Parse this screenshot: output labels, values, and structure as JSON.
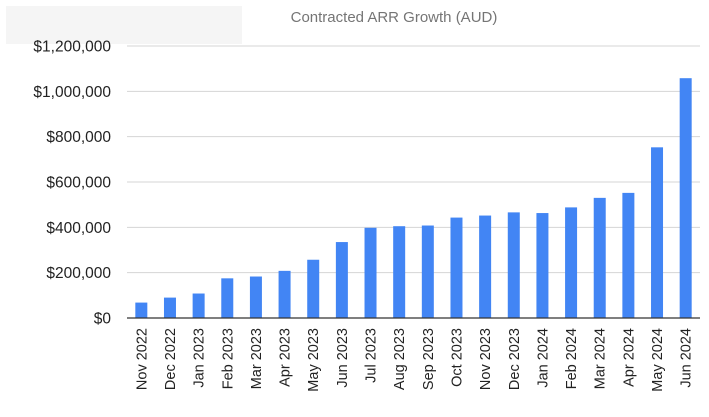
{
  "chart_data": {
    "type": "bar",
    "title": "Contracted ARR Growth (AUD)",
    "xlabel": "",
    "ylabel": "",
    "ylim": [
      0,
      1200000
    ],
    "yticks": [
      "$0",
      "$200,000",
      "$400,000",
      "$600,000",
      "$800,000",
      "$1,000,000",
      "$1,200,000"
    ],
    "ytick_values": [
      0,
      200000,
      400000,
      600000,
      800000,
      1000000,
      1200000
    ],
    "grid": true,
    "legend": "none",
    "bar_color": "#4285f4",
    "categories": [
      "Nov 2022",
      "Dec 2022",
      "Jan 2023",
      "Feb 2023",
      "Mar 2023",
      "Apr 2023",
      "May 2023",
      "Jun 2023",
      "Jul 2023",
      "Aug 2023",
      "Sep 2023",
      "Oct 2023",
      "Nov 2023",
      "Dec 2023",
      "Jan 2024",
      "Feb 2024",
      "Mar 2024",
      "Apr 2024",
      "May 2024",
      "Jun 2024"
    ],
    "values": [
      68000,
      90000,
      108000,
      175000,
      183000,
      208000,
      257000,
      335000,
      398000,
      405000,
      408000,
      443000,
      452000,
      466000,
      463000,
      488000,
      530000,
      552000,
      753000,
      1058000
    ]
  }
}
